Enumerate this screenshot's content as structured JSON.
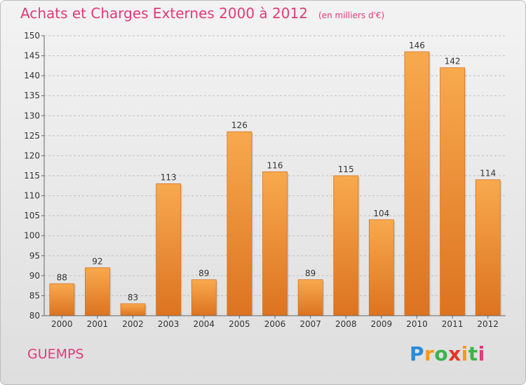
{
  "title": "Achats et Charges Externes 2000 à 2012",
  "subtitle": "(en milliers d'€)",
  "commune": "GUEMPS",
  "logo": {
    "letters": [
      "P",
      "r",
      "o",
      "x",
      "i",
      "t",
      "i"
    ],
    "colors": [
      "#2a8bd8",
      "#f39a1e",
      "#3bb34a",
      "#e6342a",
      "#f39a1e",
      "#3bb34a",
      "#e23a78"
    ]
  },
  "colors": {
    "bar_light": "#f8a94e",
    "bar_dark": "#dc7320",
    "accent": "#e23a78",
    "grid": "#bfbfbf"
  },
  "chart_data": {
    "type": "bar",
    "categories": [
      "2000",
      "2001",
      "2002",
      "2003",
      "2004",
      "2005",
      "2006",
      "2007",
      "2008",
      "2009",
      "2010",
      "2011",
      "2012"
    ],
    "values": [
      88,
      92,
      83,
      113,
      89,
      126,
      116,
      89,
      115,
      104,
      146,
      142,
      114
    ],
    "ylim": [
      80,
      150
    ],
    "yticks": [
      80,
      85,
      90,
      95,
      100,
      105,
      110,
      115,
      120,
      125,
      130,
      135,
      140,
      145,
      150
    ],
    "grid": true,
    "legend": "none"
  }
}
